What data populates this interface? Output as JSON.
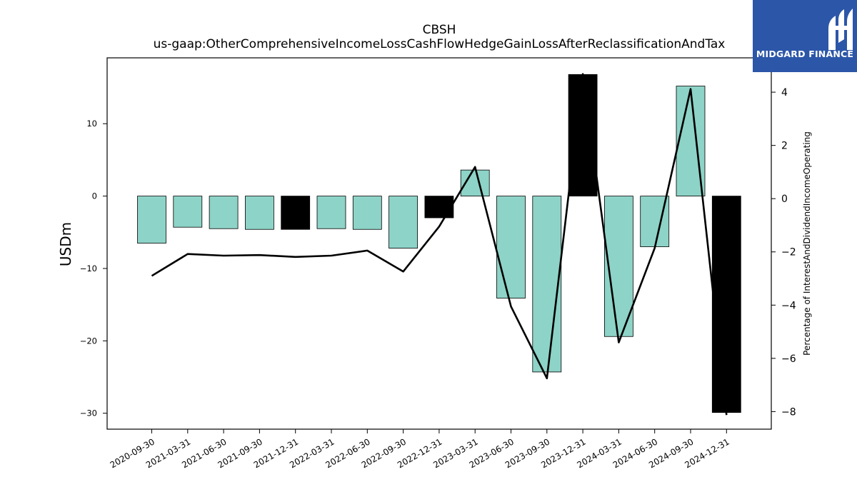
{
  "chart_data": {
    "type": "bar",
    "title": "CBSH",
    "subtitle": "us-gaap:OtherComprehensiveIncomeLossCashFlowHedgeGainLossAfterReclassificationAndTax",
    "ylabel": "USDm",
    "y2label": "Percentage of InterestAndDividendIncomeOperating",
    "categories": [
      "2020-09-30",
      "2021-03-31",
      "2021-06-30",
      "2021-09-30",
      "2021-12-31",
      "2022-03-31",
      "2022-06-30",
      "2022-09-30",
      "2022-12-31",
      "2023-03-31",
      "2023-06-30",
      "2023-09-30",
      "2023-12-31",
      "2024-03-31",
      "2024-06-30",
      "2024-09-30",
      "2024-12-31"
    ],
    "values": [
      -6.5,
      -4.3,
      -4.5,
      -4.6,
      -4.6,
      -4.5,
      -4.6,
      -7.2,
      -3.0,
      3.6,
      -14.1,
      -24.3,
      16.8,
      -19.4,
      -7.0,
      15.2,
      -29.9
    ],
    "bar_colors": [
      "#8dd3c7",
      "#8dd3c7",
      "#8dd3c7",
      "#8dd3c7",
      "#000000",
      "#8dd3c7",
      "#8dd3c7",
      "#8dd3c7",
      "#000000",
      "#8dd3c7",
      "#8dd3c7",
      "#8dd3c7",
      "#000000",
      "#8dd3c7",
      "#8dd3c7",
      "#8dd3c7",
      "#000000"
    ],
    "line_values": [
      -2.9,
      -2.08,
      -2.14,
      -2.12,
      -2.19,
      -2.14,
      -1.95,
      -2.74,
      -1.05,
      1.19,
      -4.05,
      -6.75,
      4.68,
      -5.4,
      -1.86,
      4.12,
      -8.13
    ],
    "ylim": [
      -32.2,
      19.1
    ],
    "y2lim": [
      -8.66,
      5.29
    ],
    "yticks": [
      10,
      0,
      -10,
      -20,
      -30
    ],
    "y2ticks": [
      4,
      2,
      0,
      -2,
      -4,
      -6,
      -8
    ],
    "grid": false,
    "colors": {
      "bar_default": "#8dd3c7",
      "bar_highlight": "#000000",
      "line": "#000000"
    }
  },
  "logo": {
    "text": "MIDGARD FINANCE",
    "background": "#2c56a8"
  }
}
